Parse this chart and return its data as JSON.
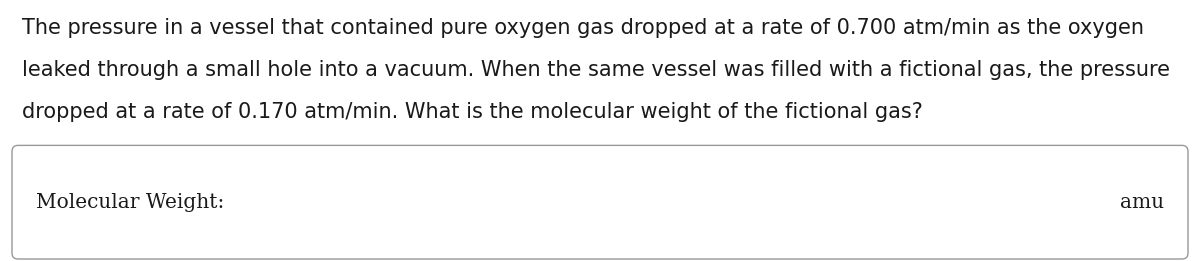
{
  "paragraph_lines": [
    "The pressure in a vessel that contained pure oxygen gas dropped at a rate of 0.700 atm/min as the oxygen",
    "leaked through a small hole into a vacuum. When the same vessel was filled with a fictional gas, the pressure",
    "dropped at a rate of 0.170 atm/min. What is the molecular weight of the fictional gas?"
  ],
  "box_label_left": "Molecular Weight:",
  "box_label_right": "amu",
  "bg_color": "#ffffff",
  "text_color": "#1a1a1a",
  "font_size_para": 15.0,
  "font_size_box": 14.5,
  "box_color": "#ffffff",
  "box_edge_color": "#999999",
  "para_font": "DejaVu Sans",
  "box_font": "DejaVu Serif"
}
